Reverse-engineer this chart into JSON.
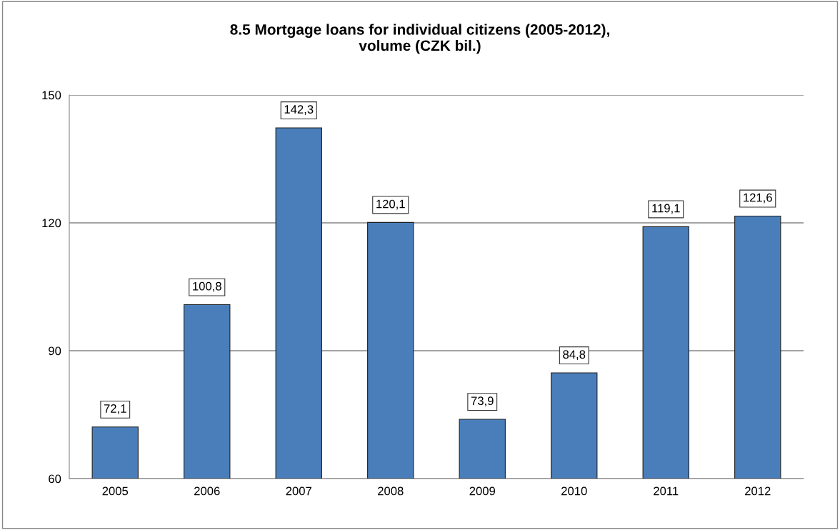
{
  "chart_data": {
    "type": "bar",
    "title": "8.5 Mortgage loans for individual citizens (2005-2012),\nvolume (CZK bil.)",
    "categories": [
      "2005",
      "2006",
      "2007",
      "2008",
      "2009",
      "2010",
      "2011",
      "2012"
    ],
    "values": [
      72.1,
      100.8,
      142.3,
      120.1,
      73.9,
      84.8,
      119.1,
      121.6
    ],
    "value_labels": [
      "72,1",
      "100,8",
      "142,3",
      "120,1",
      "73,9",
      "84,8",
      "119,1",
      "121,6"
    ],
    "color": "#4a7ebb",
    "ylim": [
      60,
      150
    ],
    "yticks": [
      60,
      90,
      120,
      150
    ],
    "grid": "y",
    "legend": false
  }
}
